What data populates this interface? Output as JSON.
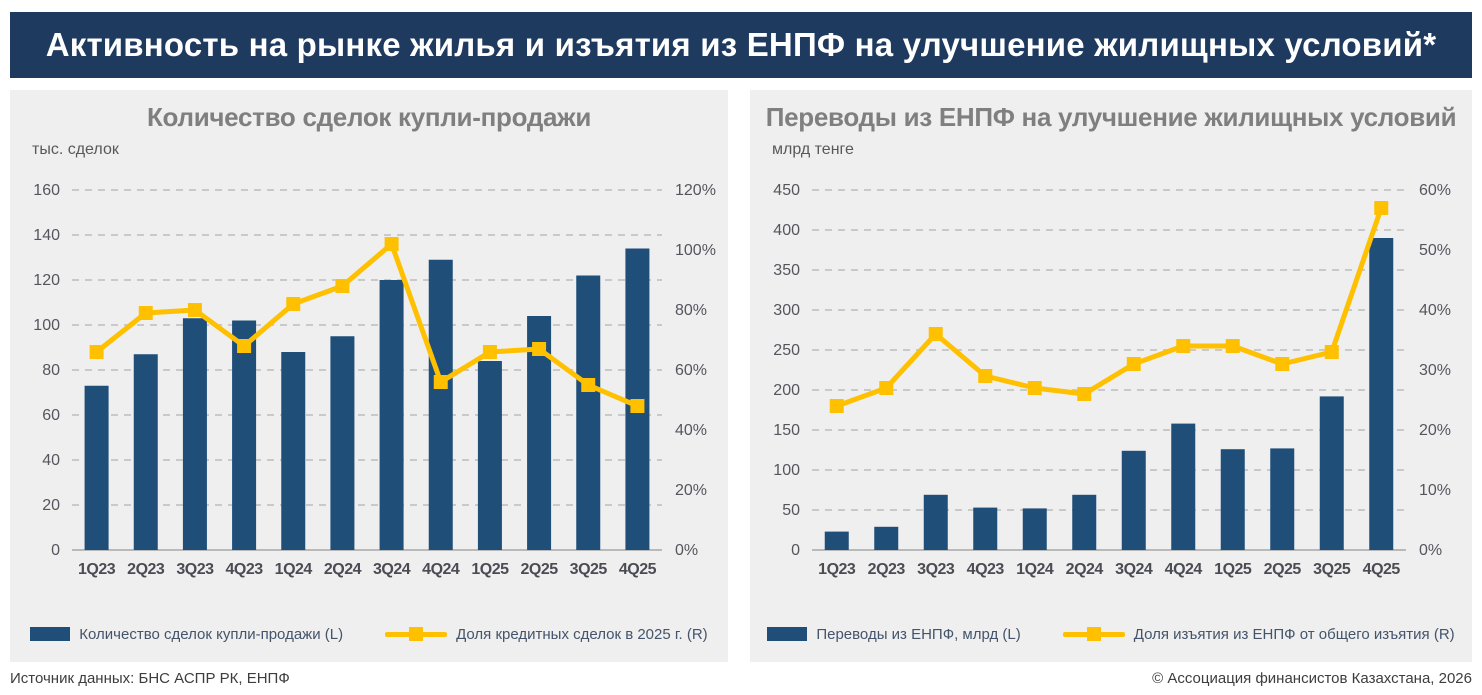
{
  "banner": {
    "title": "Активность на рынке жилья и изъятия из ЕНПФ на улучшение жилищных условий*"
  },
  "footer": {
    "source": "Источник данных: БНС АСПР РК, ЕНПФ",
    "copyright": "© Ассоциация финансистов Казахстана, 2026"
  },
  "colors": {
    "banner_bg": "#1f3a5f",
    "banner_text": "#ffffff",
    "panel_bg": "#efefef",
    "bar": "#1f4e79",
    "line": "#ffc000",
    "chart_title": "#7f7f7f",
    "axis_text": "#55555e",
    "x_label_text": "#4b4b54",
    "grid": "#c9c9c9",
    "axis_line": "#b9b9b9",
    "legend_text": "#44546a"
  },
  "chart_data": [
    {
      "type": "bar",
      "title": "Количество сделок купли-продажи",
      "unit": "тыс. сделок",
      "categories": [
        "1Q23",
        "2Q23",
        "3Q23",
        "4Q23",
        "1Q24",
        "2Q24",
        "3Q24",
        "4Q24",
        "1Q25",
        "2Q25",
        "3Q25",
        "4Q25"
      ],
      "series": [
        {
          "name": "Количество сделок купли-продажи (L)",
          "kind": "bar",
          "axis": "left",
          "values": [
            73,
            87,
            103,
            102,
            88,
            95,
            120,
            129,
            84,
            104,
            122,
            134
          ]
        },
        {
          "name": "Доля кредитных сделок в 2025 г. (R)",
          "kind": "line",
          "axis": "right",
          "values": [
            66,
            79,
            80,
            68,
            82,
            88,
            102,
            56,
            66,
            67,
            55,
            48
          ]
        }
      ],
      "left_axis": {
        "min": 0,
        "max": 160,
        "ticks": [
          0,
          20,
          40,
          60,
          80,
          100,
          120,
          140,
          160
        ],
        "suffix": ""
      },
      "right_axis": {
        "min": 0,
        "max": 120,
        "ticks": [
          0,
          20,
          40,
          60,
          80,
          100,
          120
        ],
        "suffix": "%"
      },
      "grid": "dashed-horizontal",
      "legend_position": "bottom"
    },
    {
      "type": "bar",
      "title": "Переводы из ЕНПФ на улучшение жилищных условий",
      "unit": "млрд тенге",
      "categories": [
        "1Q23",
        "2Q23",
        "3Q23",
        "4Q23",
        "1Q24",
        "2Q24",
        "3Q24",
        "4Q24",
        "1Q25",
        "2Q25",
        "3Q25",
        "4Q25"
      ],
      "series": [
        {
          "name": "Переводы из ЕНПФ, млрд (L)",
          "kind": "bar",
          "axis": "left",
          "values": [
            23,
            29,
            69,
            53,
            52,
            69,
            124,
            158,
            126,
            127,
            192,
            390
          ]
        },
        {
          "name": "Доля изъятия из ЕНПФ от общего изъятия (R)",
          "kind": "line",
          "axis": "right",
          "values": [
            24,
            27,
            36,
            29,
            27,
            26,
            31,
            34,
            34,
            31,
            33,
            57
          ]
        }
      ],
      "left_axis": {
        "min": 0,
        "max": 450,
        "ticks": [
          0,
          50,
          100,
          150,
          200,
          250,
          300,
          350,
          400,
          450
        ],
        "suffix": ""
      },
      "right_axis": {
        "min": 0,
        "max": 60,
        "ticks": [
          0,
          10,
          20,
          30,
          40,
          50,
          60
        ],
        "suffix": "%"
      },
      "grid": "dashed-horizontal",
      "legend_position": "bottom"
    }
  ]
}
